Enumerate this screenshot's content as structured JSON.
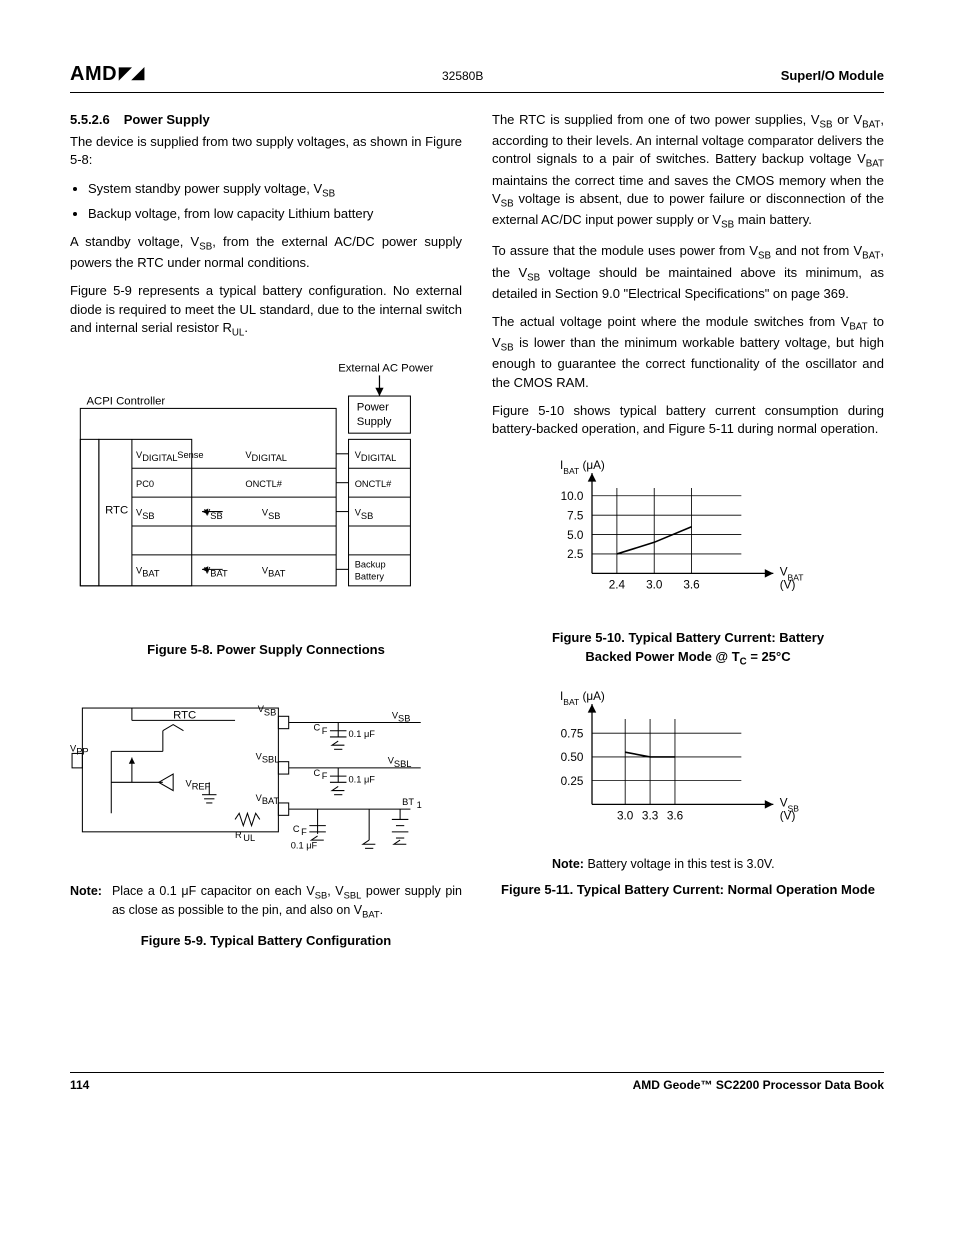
{
  "header": {
    "logo_text": "AMD",
    "doc_num": "32580B",
    "module": "SuperI/O Module"
  },
  "left": {
    "sec_num": "5.5.2.6",
    "sec_title": "Power Supply",
    "p1": "The device is supplied from two supply voltages, as shown in Figure 5-8:",
    "bullet1_a": "System standby power supply voltage, V",
    "bullet1_b": "SB",
    "bullet2": "Backup voltage, from low capacity Lithium battery",
    "p2_a": "A standby voltage, V",
    "p2_b": "SB",
    "p2_c": ", from the external AC/DC power supply powers the RTC under normal conditions.",
    "p3_a": "Figure 5-9 represents a typical battery configuration. No external diode is required to meet the UL standard, due to the internal switch and internal serial resistor R",
    "p3_b": "UL",
    "p3_c": ".",
    "fig58": {
      "caption": "Figure 5-8.  Power Supply Connections",
      "labels": {
        "ext_ac": "External AC Power",
        "power_supply": "Power\nSupply",
        "acpi": "ACPI Controller",
        "rtc": "RTC",
        "vdig_sense": "V_DIGITAL Sense",
        "vdigital": "V_DIGITAL",
        "pc0": "PC0",
        "onctl": "ONCTL#",
        "vsb": "V_SB",
        "vbat": "V_BAT",
        "backup": "Backup\nBattery"
      }
    },
    "fig59": {
      "caption": "Figure 5-9.  Typical Battery Configuration",
      "labels": {
        "rtc": "RTC",
        "vpp": "V_PP",
        "vref": "V_REF",
        "vsb": "V_SB",
        "vsbl": "V_SBL",
        "vbat": "V_BAT",
        "rul": "R_UL",
        "cf": "C_F",
        "cap": "0.1 μF",
        "bt1": "BT_1"
      },
      "note_label": "Note:",
      "note_a": "Place a 0.1 μF capacitor on each V",
      "note_b": "SB",
      "note_c": ", V",
      "note_d": "SBL",
      "note_e": " power supply pin as close as possible to the pin, and also on V",
      "note_f": "BAT",
      "note_g": "."
    }
  },
  "right": {
    "p1_a": "The RTC is supplied from one of two power supplies, V",
    "p1_b": "SB",
    "p1_c": " or V",
    "p1_d": "BAT",
    "p1_e": ", according to their levels. An internal voltage comparator delivers the control signals to a pair of switches. Battery backup voltage V",
    "p1_f": "BAT",
    "p1_g": " maintains the correct time and saves the CMOS memory when the V",
    "p1_h": "SB",
    "p1_i": " voltage is absent, due to power failure or disconnection of the external AC/DC input power supply or V",
    "p1_j": "SB",
    "p1_k": " main battery.",
    "p2_a": "To assure that the module uses power from V",
    "p2_b": "SB",
    "p2_c": " and not from V",
    "p2_d": "BAT",
    "p2_e": ", the V",
    "p2_f": "SB",
    "p2_g": " voltage should be maintained above its minimum, as detailed in Section 9.0 \"Electrical Specifications\" on page 369.",
    "p3_a": "The actual voltage point where the module switches from V",
    "p3_b": "BAT",
    "p3_c": " to V",
    "p3_d": "SB",
    "p3_e": " is lower than the minimum workable battery voltage, but high enough to guarantee the correct functionality of the oscillator and the CMOS RAM.",
    "p4": "Figure 5-10 shows typical battery current consumption during battery-backed operation, and Figure 5-11 during normal operation.",
    "chart510": {
      "caption_a": "Figure 5-10.  Typical Battery Current: Battery",
      "caption_b": "Backed Power Mode @ T",
      "caption_c": "C",
      "caption_d": " = 25°C",
      "ylabel_a": "I",
      "ylabel_b": "BAT",
      "ylabel_c": " (μA)",
      "xlabel_a": "V",
      "xlabel_b": "BAT",
      "xlabel_c": " (V)",
      "yticks": [
        "2.5",
        "5.0",
        "7.5",
        "10.0"
      ],
      "xticks": [
        "2.4",
        "3.0",
        "3.6"
      ],
      "x_values": [
        2.4,
        3.0,
        3.6
      ],
      "y_values": [
        2.5,
        4.0,
        6.0
      ],
      "xlim": [
        2.0,
        4.4
      ],
      "ylim": [
        0,
        11
      ],
      "line_color": "#000000",
      "grid_color": "#000000",
      "bg": "#ffffff"
    },
    "chart511": {
      "caption": "Figure 5-11.  Typical Battery Current: Normal Operation Mode",
      "ylabel_a": "I",
      "ylabel_b": "BAT",
      "ylabel_c": " (μA)",
      "xlabel_a": "V",
      "xlabel_b": "SB",
      "xlabel_c": "(V)",
      "yticks": [
        "0.25",
        "0.50",
        "0.75"
      ],
      "xticks": [
        "3.0",
        "3.3",
        "3.6"
      ],
      "x_values": [
        3.0,
        3.3,
        3.6
      ],
      "y_values": [
        0.55,
        0.5,
        0.5
      ],
      "xlim": [
        2.6,
        4.4
      ],
      "ylim": [
        0,
        0.9
      ],
      "line_color": "#000000",
      "grid_color": "#000000",
      "bg": "#ffffff",
      "note": "Note: Battery voltage in this test is 3.0V."
    }
  },
  "footer": {
    "page": "114",
    "book": "AMD Geode™ SC2200  Processor Data Book"
  }
}
